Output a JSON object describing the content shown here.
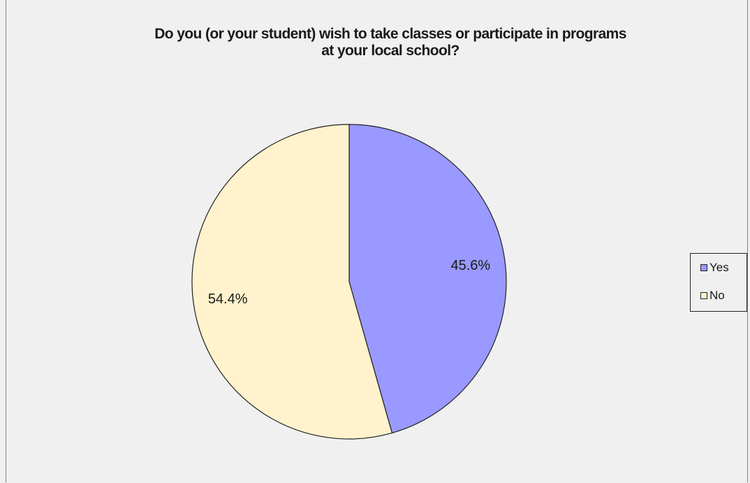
{
  "chart_data": {
    "type": "pie",
    "title_lines": [
      "Do you (or your student) wish to take classes or participate in programs",
      "at your local school?"
    ],
    "slices": [
      {
        "label": "Yes",
        "value": 45.6,
        "display": "45.6%",
        "color": "#9999ff"
      },
      {
        "label": "No",
        "value": 54.4,
        "display": "54.4%",
        "color": "#fff2cc"
      }
    ],
    "start_angle_deg": 0,
    "direction": "clockwise",
    "legend_position": "right"
  },
  "legend": {
    "items": [
      {
        "label": "Yes",
        "color": "#9999ff"
      },
      {
        "label": "No",
        "color": "#fff2cc"
      }
    ]
  }
}
